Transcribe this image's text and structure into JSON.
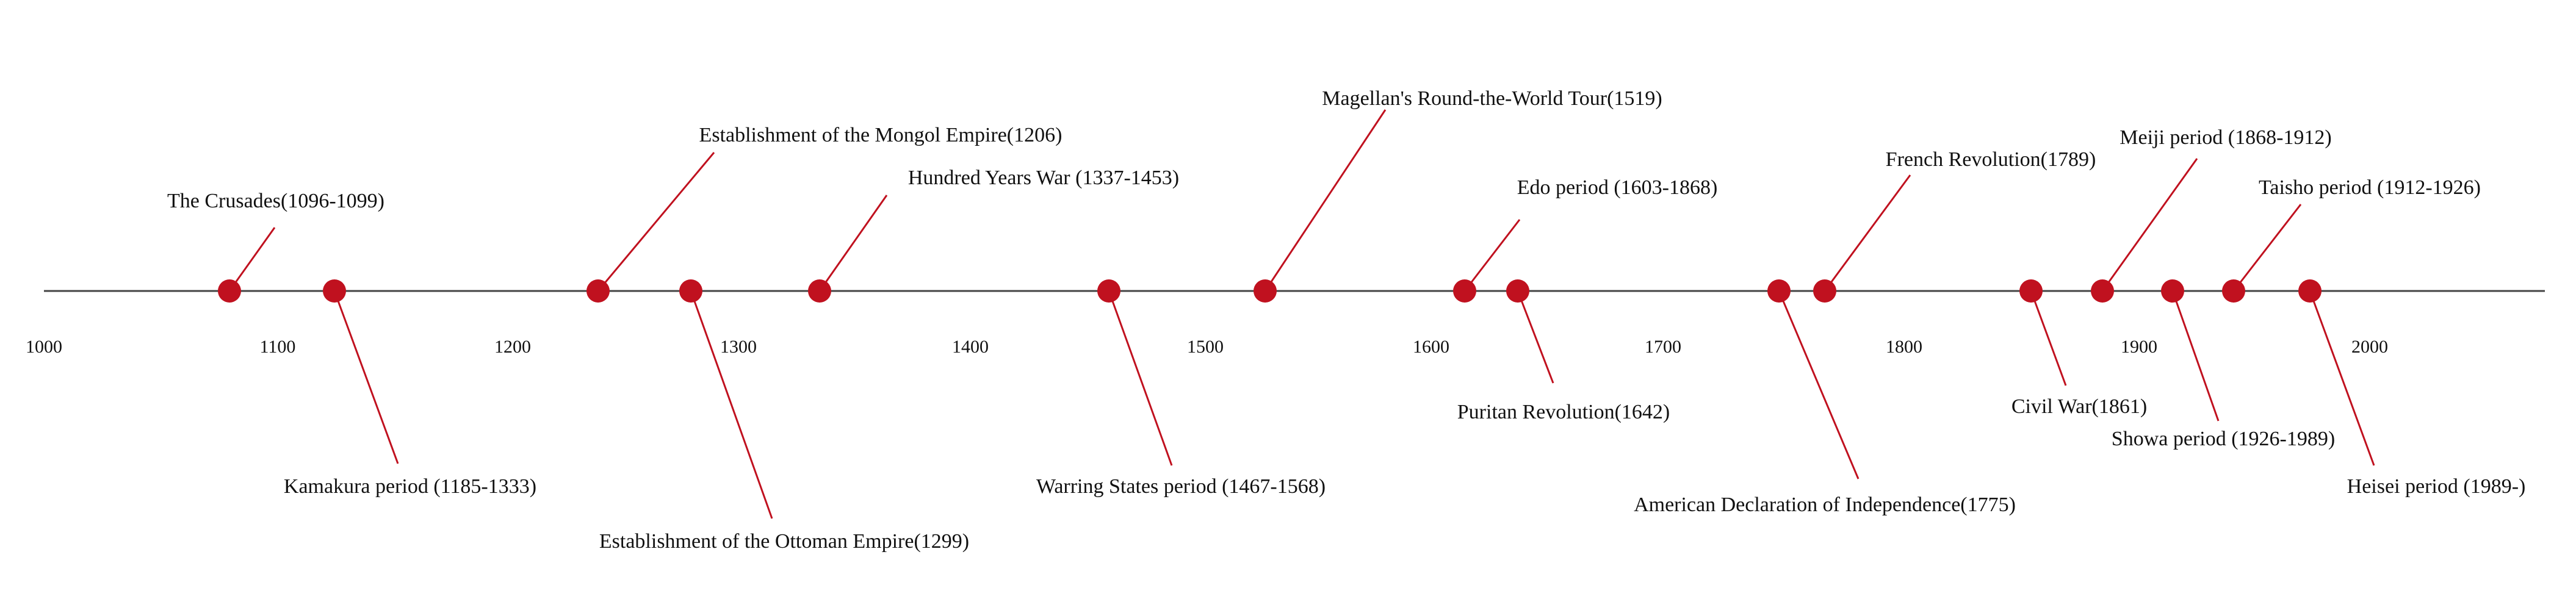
{
  "colors": {
    "axis": "#444444",
    "marker": "#c0111f",
    "leader": "#c0111f",
    "text": "#111111"
  },
  "axis": {
    "ticks": [
      "1000",
      "1100",
      "1200",
      "1300",
      "1400",
      "1500",
      "1600",
      "1700",
      "1800",
      "1900",
      "2000"
    ]
  },
  "events": [
    {
      "label": "The Crusades(1096-1099)",
      "year": 1096,
      "side": "above"
    },
    {
      "label": "Kamakura period (1185-1333)",
      "year": 1185,
      "side": "below"
    },
    {
      "label": "Establishment of the Mongol Empire(1206)",
      "year": 1206,
      "side": "above"
    },
    {
      "label": "Establishment of the Ottoman Empire(1299)",
      "year": 1299,
      "side": "below"
    },
    {
      "label": "Hundred Years War (1337-1453)",
      "year": 1337,
      "side": "above"
    },
    {
      "label": "Warring States period (1467-1568)",
      "year": 1467,
      "side": "below"
    },
    {
      "label": "Magellan's Round-the-World Tour(1519)",
      "year": 1519,
      "side": "above"
    },
    {
      "label": "Edo period (1603-1868)",
      "year": 1603,
      "side": "above"
    },
    {
      "label": "Puritan Revolution(1642)",
      "year": 1642,
      "side": "below"
    },
    {
      "label": "American Declaration of Independence(1775)",
      "year": 1775,
      "side": "below"
    },
    {
      "label": "French Revolution(1789)",
      "year": 1789,
      "side": "above"
    },
    {
      "label": "Civil War(1861)",
      "year": 1861,
      "side": "below"
    },
    {
      "label": "Meiji period (1868-1912)",
      "year": 1868,
      "side": "above"
    },
    {
      "label": "Showa period (1926-1989)",
      "year": 1926,
      "side": "below"
    },
    {
      "label": "Taisho period (1912-1926)",
      "year": 1912,
      "side": "above"
    },
    {
      "label": "Heisei period (1989-)",
      "year": 1989,
      "side": "below"
    }
  ]
}
